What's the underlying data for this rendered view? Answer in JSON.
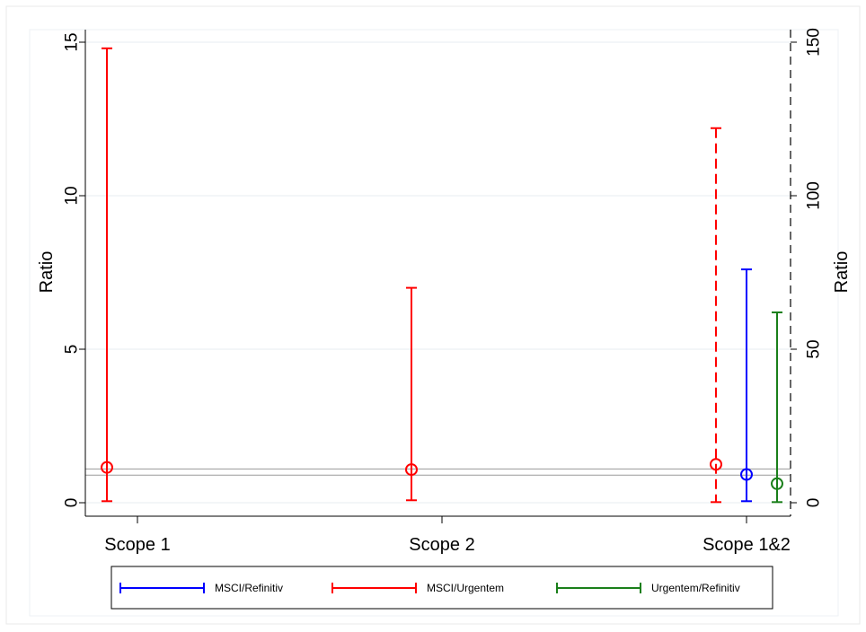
{
  "chart_data": {
    "type": "errorbar",
    "title": "",
    "categories": [
      "Scope 1",
      "Scope 2",
      "Scope 1&2"
    ],
    "y_left": {
      "label": "Ratio",
      "ylim": [
        0,
        15
      ],
      "ticks": [
        "0",
        "5",
        "10",
        "15"
      ]
    },
    "y_right": {
      "label": "Ratio",
      "ylim": [
        0,
        150
      ],
      "ticks": [
        "0",
        "50",
        "100",
        "150"
      ]
    },
    "reference_lines": [
      0.9,
      1.1
    ],
    "grid": true,
    "legend": {
      "position": "bottom",
      "border": true
    },
    "series": [
      {
        "name": "MSCI/Refinitiv",
        "color": "#0000ff",
        "axis": "left",
        "points": [
          {
            "category": "Scope 1&2",
            "estimate": 0.92,
            "low": 0.05,
            "high": 7.6
          }
        ]
      },
      {
        "name": "MSCI/Urgentem",
        "color": "#ff0000",
        "axis": "left",
        "points": [
          {
            "category": "Scope 1",
            "estimate": 1.15,
            "low": 0.05,
            "high": 14.8
          },
          {
            "category": "Scope 2",
            "estimate": 1.08,
            "low": 0.08,
            "high": 7.0
          },
          {
            "category": "Scope 1&2",
            "estimate": 1.25,
            "low": 0.02,
            "high": 12.2,
            "dashed": true
          }
        ]
      },
      {
        "name": "Urgentem/Refinitiv",
        "color": "#1a7f1a",
        "axis": "left",
        "points": [
          {
            "category": "Scope 1&2",
            "estimate": 0.62,
            "low": 0.02,
            "high": 6.2
          }
        ]
      }
    ]
  }
}
